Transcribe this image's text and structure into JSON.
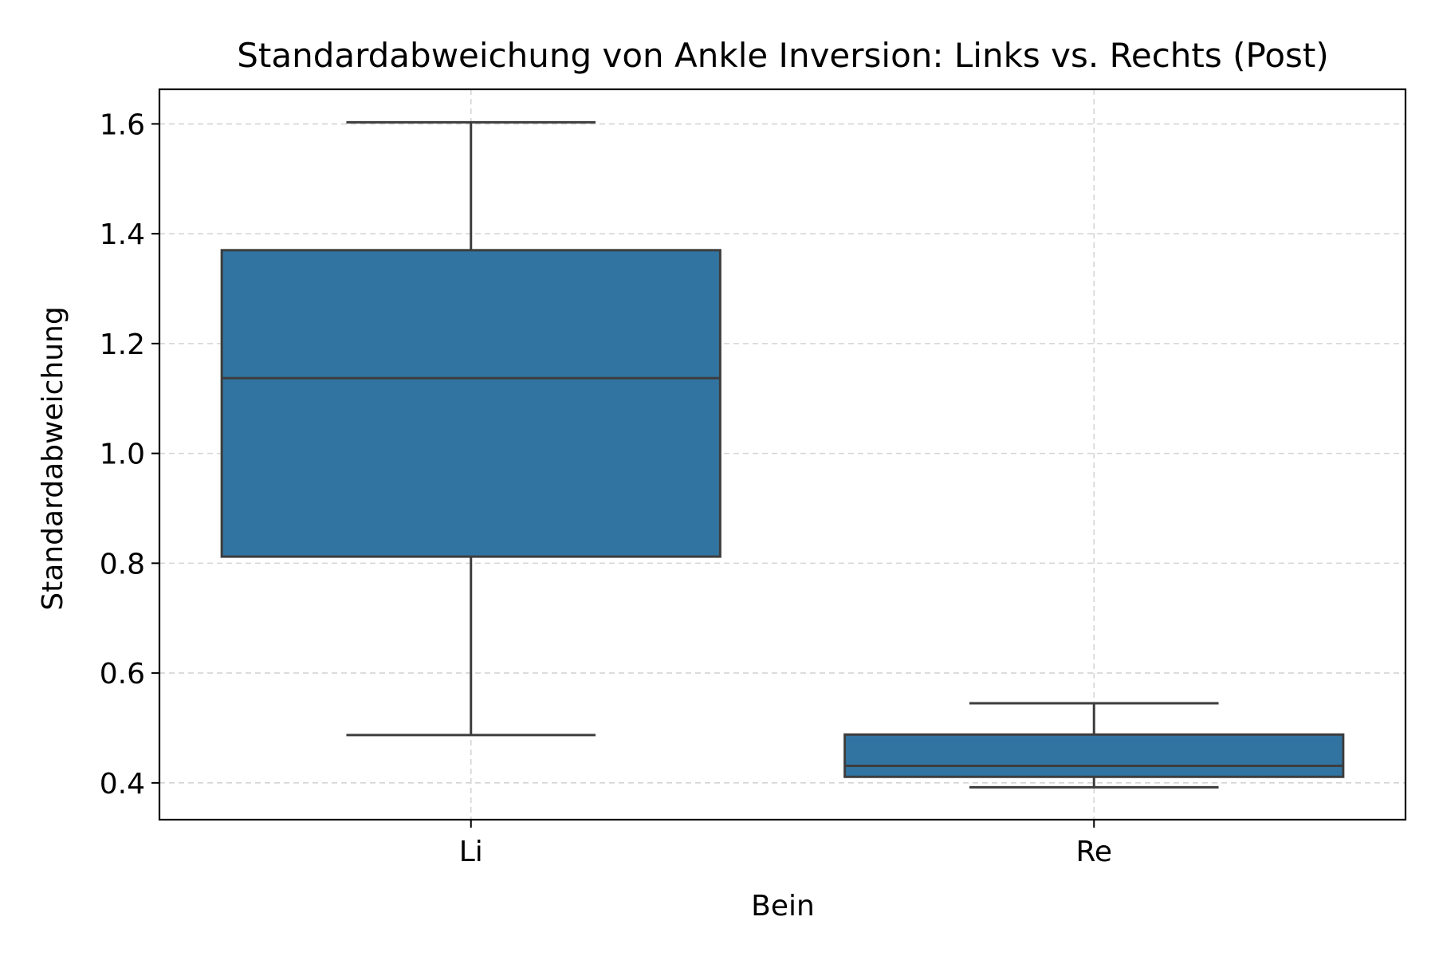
{
  "chart_data": {
    "type": "box",
    "title": "Standardabweichung von Ankle Inversion: Links vs. Rechts (Post)",
    "xlabel": "Bein",
    "ylabel": "Standardabweichung",
    "categories": [
      "Li",
      "Re"
    ],
    "ylim": [
      0.333,
      1.663
    ],
    "yticks": [
      0.4,
      0.6,
      0.8,
      1.0,
      1.2,
      1.4,
      1.6
    ],
    "ytick_labels": [
      "0.4",
      "0.6",
      "0.8",
      "1.0",
      "1.2",
      "1.4",
      "1.6"
    ],
    "grid": true,
    "box_color": "#3274a1",
    "line_color": "#3d3d3d",
    "boxes": [
      {
        "category": "Li",
        "whisker_low": 0.487,
        "q1": 0.812,
        "median": 1.137,
        "q3": 1.37,
        "whisker_high": 1.603
      },
      {
        "category": "Re",
        "whisker_low": 0.392,
        "q1": 0.411,
        "median": 0.431,
        "q3": 0.488,
        "whisker_high": 0.545
      }
    ]
  }
}
